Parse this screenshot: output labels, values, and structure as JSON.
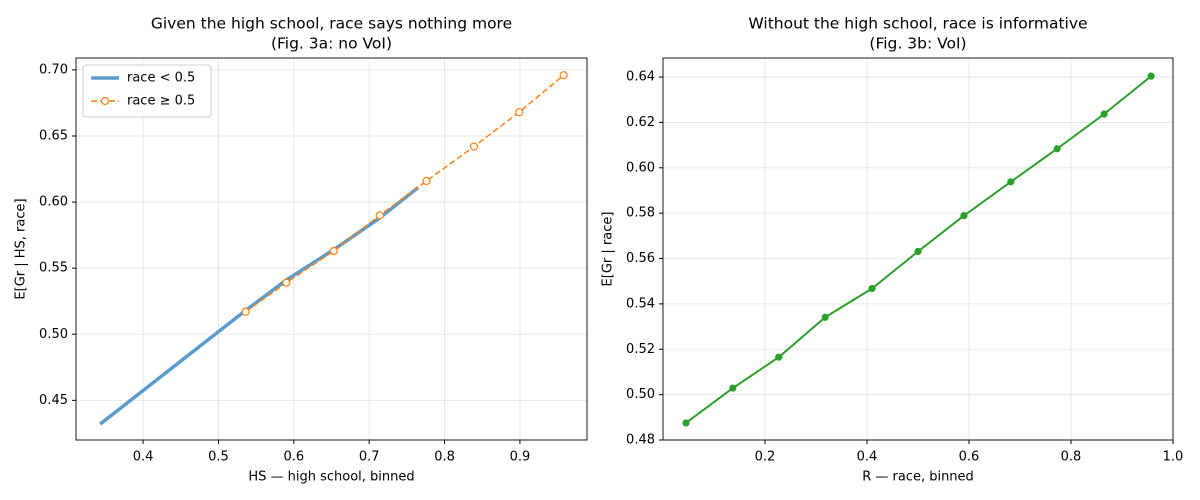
{
  "chart_data": [
    {
      "type": "line",
      "title": "Given the high school, race says nothing more",
      "subtitle": "(Fig. 3a: no VoI)",
      "x_label": "HS — high school, binned",
      "y_label": "E[Gr | HS, race]",
      "xlim": [
        0.311,
        0.989
      ],
      "ylim": [
        0.42,
        0.709
      ],
      "xticks": [
        0.4,
        0.5,
        0.6,
        0.7,
        0.8,
        0.9
      ],
      "yticks": [
        0.45,
        {
          "value": 0.5,
          "label": "0.50"
        },
        0.55,
        {
          "value": 0.6,
          "label": "0.60"
        },
        0.65,
        {
          "value": 0.7,
          "label": "0.70"
        }
      ],
      "grid": true,
      "legend": "upper left",
      "series": [
        {
          "name": "race < 0.5",
          "color": "#5b9ccc",
          "linewidth": 3.5,
          "dashed": false,
          "marker": "none",
          "x": [
            0.343,
            0.536,
            0.59,
            0.653,
            0.714,
            0.765
          ],
          "values": [
            0.432,
            0.518,
            0.541,
            0.564,
            0.588,
            0.611
          ]
        },
        {
          "name": "race ≥ 0.5",
          "color": "#ff7f0e",
          "linewidth": 1.5,
          "dashed": true,
          "marker": "open",
          "x": [
            0.536,
            0.59,
            0.653,
            0.714,
            0.776,
            0.839,
            0.899,
            0.958
          ],
          "values": [
            0.517,
            0.539,
            0.563,
            0.59,
            0.616,
            0.642,
            0.668,
            0.696
          ]
        }
      ]
    },
    {
      "type": "line",
      "title": "Without the high school, race is informative",
      "subtitle": "(Fig. 3b: VoI)",
      "x_label": "R — race, binned",
      "y_label": "E[Gr | race]",
      "xlim": [
        0.0,
        1.0
      ],
      "ylim": [
        0.48,
        0.6484
      ],
      "xticks": [
        0.2,
        0.4,
        0.6,
        0.8,
        {
          "value": 1,
          "label": "1.0"
        }
      ],
      "yticks": [
        0.48,
        {
          "value": 0.5,
          "label": "0.50"
        },
        0.52,
        0.54,
        0.56,
        0.58,
        {
          "value": 0.6,
          "label": "0.60"
        },
        0.62,
        0.64
      ],
      "grid": true,
      "series": [
        {
          "color": "#2ca02c",
          "linewidth": 2,
          "dashed": false,
          "marker": "filled",
          "x": [
            0.045,
            0.137,
            0.227,
            0.318,
            0.41,
            0.5,
            0.59,
            0.682,
            0.773,
            0.865,
            0.957
          ],
          "values": [
            0.4875,
            0.5029,
            0.5165,
            0.5341,
            0.5468,
            0.5631,
            0.5789,
            0.5938,
            0.6084,
            0.6237,
            0.6404
          ]
        }
      ]
    }
  ]
}
